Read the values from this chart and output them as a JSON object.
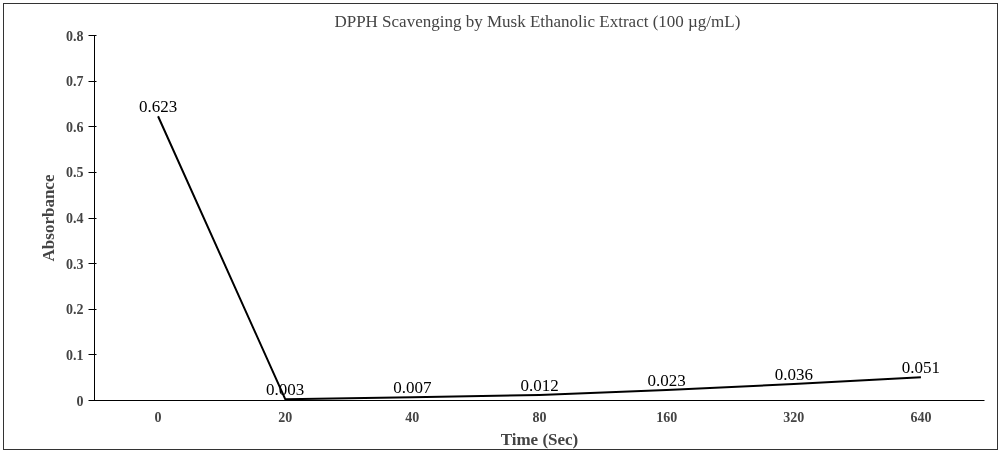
{
  "chart_data": {
    "type": "line",
    "title": "DPPH Scavenging  by Musk Ethanolic Extract (100 µg/mL)",
    "xlabel": "Time (Sec)",
    "ylabel": "Absorbance",
    "categories": [
      "0",
      "20",
      "40",
      "80",
      "160",
      "320",
      "640"
    ],
    "series": [
      {
        "color": "#000000",
        "values": [
          0.623,
          0.003,
          0.007,
          0.012,
          0.023,
          0.036,
          0.051
        ]
      }
    ],
    "ylim": [
      0,
      0.8
    ],
    "yticks": [
      0,
      0.1,
      0.2,
      0.3,
      0.4,
      0.5,
      0.6,
      0.7,
      0.8
    ],
    "grid": false,
    "marker": "none",
    "line_style": "solid",
    "data_labels": true
  }
}
